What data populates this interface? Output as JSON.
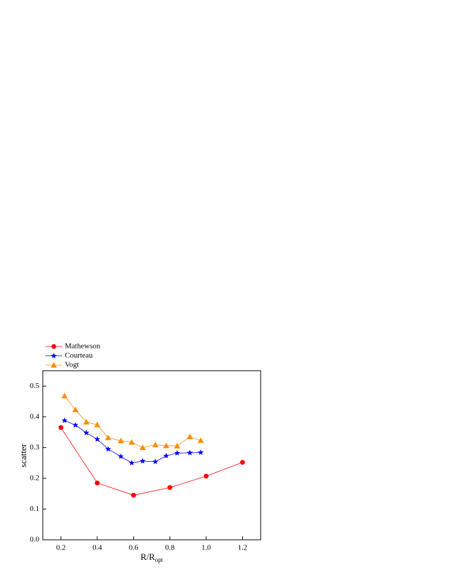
{
  "chart_data": {
    "type": "line",
    "x_label": "R/R",
    "x_label_sub": "opt",
    "y_label": "scatter",
    "xlim": [
      0.1,
      1.3
    ],
    "xticks": [
      0.2,
      0.4,
      0.6,
      0.8,
      {
        "value": 1,
        "label": "1.0"
      },
      1.2
    ],
    "ylim": [
      0,
      0.55
    ],
    "yticks": [
      {
        "value": 0,
        "label": "0.0"
      },
      0.1,
      0.2,
      0.3,
      0.4,
      0.5
    ],
    "legend": "top-left",
    "series": [
      {
        "name": "Mathewson",
        "color": "#ff0000",
        "marker": "circle",
        "x": [
          0.2,
          0.4,
          0.6,
          0.8,
          1.0,
          1.2
        ],
        "values": [
          0.365,
          0.185,
          0.145,
          0.17,
          0.207,
          0.252
        ]
      },
      {
        "name": "Courteau",
        "color": "#0000ff",
        "marker": "star",
        "x": [
          0.22,
          0.28,
          0.34,
          0.4,
          0.46,
          0.53,
          0.59,
          0.65,
          0.72,
          0.78,
          0.84,
          0.91,
          0.97
        ],
        "values": [
          0.388,
          0.373,
          0.348,
          0.327,
          0.295,
          0.271,
          0.25,
          0.256,
          0.254,
          0.273,
          0.282,
          0.283,
          0.284
        ]
      },
      {
        "name": "Vogt",
        "color": "#ff8c00",
        "marker": "triangle",
        "x": [
          0.22,
          0.28,
          0.34,
          0.4,
          0.46,
          0.53,
          0.59,
          0.65,
          0.72,
          0.78,
          0.84,
          0.91,
          0.97
        ],
        "values": [
          0.468,
          0.423,
          0.383,
          0.374,
          0.332,
          0.322,
          0.317,
          0.3,
          0.309,
          0.306,
          0.305,
          0.335,
          0.323
        ]
      }
    ]
  }
}
